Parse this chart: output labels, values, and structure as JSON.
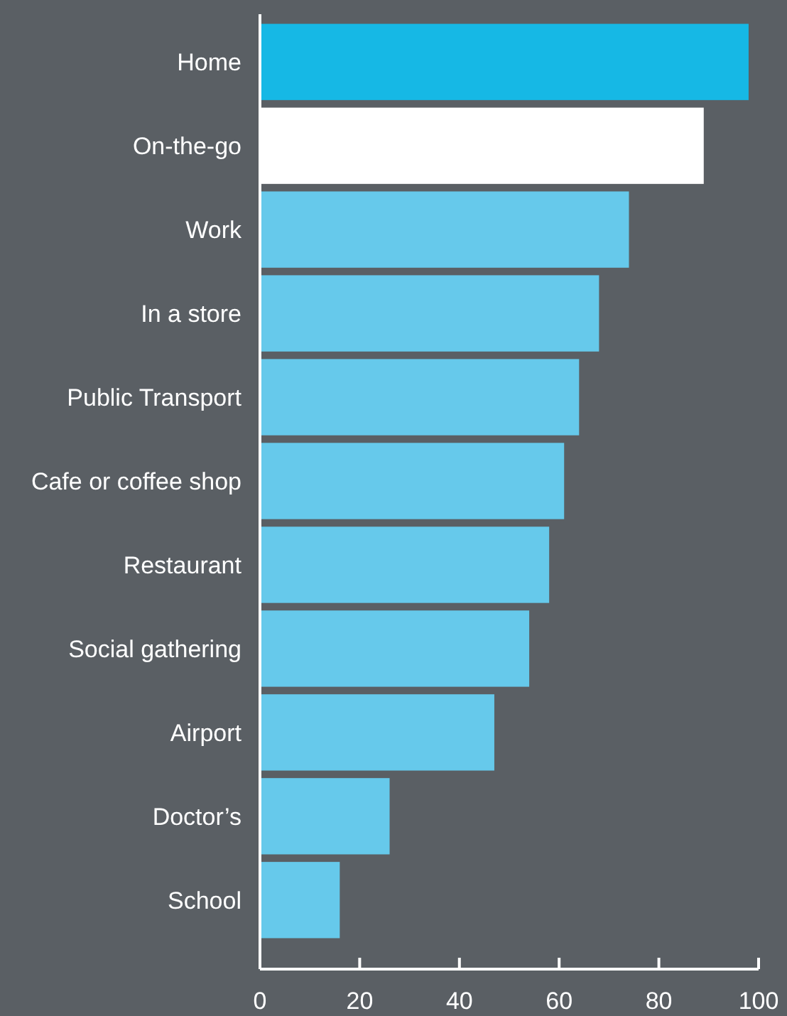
{
  "chart_data": {
    "type": "bar",
    "orientation": "horizontal",
    "categories": [
      "Home",
      "On-the-go",
      "Work",
      "In a store",
      "Public Transport",
      "Cafe or coffee shop",
      "Restaurant",
      "Social gathering",
      "Airport",
      "Doctor’s",
      "School"
    ],
    "values": [
      98,
      89,
      74,
      68,
      64,
      61,
      58,
      54,
      47,
      26,
      16
    ],
    "colors": [
      "#16b8e5",
      "#ffffff",
      "#66c9eb",
      "#66c9eb",
      "#66c9eb",
      "#66c9eb",
      "#66c9eb",
      "#66c9eb",
      "#66c9eb",
      "#66c9eb",
      "#66c9eb"
    ],
    "xlim": [
      0,
      100
    ],
    "xticks": [
      0,
      20,
      40,
      60,
      80,
      100
    ],
    "grid": false
  }
}
